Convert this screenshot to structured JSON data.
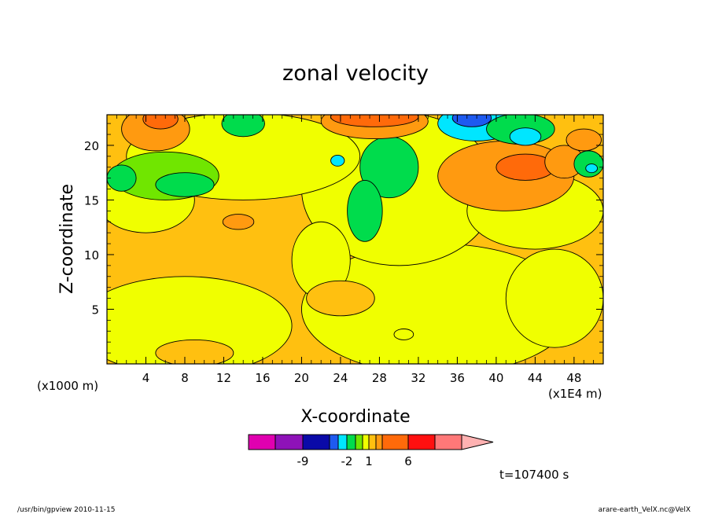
{
  "chart_data": {
    "type": "heatmap",
    "title": "zonal velocity",
    "xlabel": "X-coordinate",
    "ylabel": "Z-coordinate",
    "x_unit_left": "(x1000 m)",
    "x_unit_right": "(x1E4 m)",
    "x_ticks": [
      4,
      8,
      12,
      16,
      20,
      24,
      28,
      32,
      36,
      40,
      44,
      48
    ],
    "y_ticks": [
      5,
      10,
      15,
      20
    ],
    "xlim": [
      0,
      51
    ],
    "ylim": [
      0,
      22.8
    ],
    "time_label": "t=107400 s",
    "colorbar": {
      "levels": [
        -12,
        -9,
        -6,
        -3,
        -2,
        -1,
        0,
        1,
        2,
        3,
        6,
        9,
        12
      ],
      "colors": [
        "#e000b0",
        "#8e12b8",
        "#0a0aa8",
        "#1e5af0",
        "#00e6ff",
        "#00dc4c",
        "#70e600",
        "#f0ff00",
        "#ffc010",
        "#ff9a10",
        "#ff6a0a",
        "#ff1010",
        "#ff7878",
        "#ffb2b2"
      ],
      "tick_labels": [
        {
          "level": -9,
          "text": "-9"
        },
        {
          "level": -2,
          "text": "-2"
        },
        {
          "level": 1,
          "text": "1"
        },
        {
          "level": 6,
          "text": "6"
        }
      ]
    },
    "field": {
      "background": 1.5,
      "regions": [
        {
          "cx": 34,
          "cy": 5,
          "rx": 14,
          "ry": 6,
          "v": 0.5
        },
        {
          "cx": 8,
          "cy": 3.5,
          "rx": 11,
          "ry": 4.5,
          "v": 0.5
        },
        {
          "cx": 46,
          "cy": 6,
          "rx": 5,
          "ry": 4.5,
          "v": 0.5
        },
        {
          "cx": 30,
          "cy": 16,
          "rx": 10,
          "ry": 7,
          "v": 0.5
        },
        {
          "cx": 22,
          "cy": 9.5,
          "rx": 3,
          "ry": 3.5,
          "v": 0.5
        },
        {
          "cx": 44,
          "cy": 14,
          "rx": 7,
          "ry": 3.5,
          "v": 0.5
        },
        {
          "cx": 14,
          "cy": 19,
          "rx": 12,
          "ry": 4,
          "v": 0.5
        },
        {
          "cx": 4,
          "cy": 15,
          "rx": 5,
          "ry": 3,
          "v": 0.5
        },
        {
          "cx": 9,
          "cy": 1,
          "rx": 4,
          "ry": 1.2,
          "v": 1.5
        },
        {
          "cx": 24,
          "cy": 6,
          "rx": 3.5,
          "ry": 1.6,
          "v": 1.5
        },
        {
          "cx": 29,
          "cy": 18,
          "rx": 3,
          "ry": 2.8,
          "v": -1.5
        },
        {
          "cx": 26.5,
          "cy": 14,
          "rx": 1.8,
          "ry": 2.8,
          "v": -1.5
        },
        {
          "cx": 23.7,
          "cy": 18.6,
          "rx": 0.7,
          "ry": 0.5,
          "v": -2.5
        },
        {
          "cx": 6,
          "cy": 17.2,
          "rx": 5.5,
          "ry": 2.2,
          "v": -0.5
        },
        {
          "cx": 8,
          "cy": 16.4,
          "rx": 3,
          "ry": 1.1,
          "v": -1.5
        },
        {
          "cx": 1.5,
          "cy": 17,
          "rx": 1.5,
          "ry": 1.2,
          "v": -1.5
        },
        {
          "cx": 41,
          "cy": 17.2,
          "rx": 7,
          "ry": 3.2,
          "v": 2.5
        },
        {
          "cx": 43,
          "cy": 18,
          "rx": 3,
          "ry": 1.2,
          "v": 4.5
        },
        {
          "cx": 47,
          "cy": 18.5,
          "rx": 2,
          "ry": 1.5,
          "v": 2.5
        },
        {
          "cx": 27.5,
          "cy": 22.2,
          "rx": 5.5,
          "ry": 1.6,
          "v": 2.5
        },
        {
          "cx": 27.5,
          "cy": 22.6,
          "rx": 4.5,
          "ry": 0.9,
          "v": 4.5
        },
        {
          "cx": 5,
          "cy": 21.5,
          "rx": 3.5,
          "ry": 2,
          "v": 2.5
        },
        {
          "cx": 5.5,
          "cy": 22.4,
          "rx": 1.8,
          "ry": 0.9,
          "v": 4.5
        },
        {
          "cx": 14,
          "cy": 22,
          "rx": 2.2,
          "ry": 1.2,
          "v": -1.5
        },
        {
          "cx": 38,
          "cy": 22,
          "rx": 4,
          "ry": 1.6,
          "v": -2.5
        },
        {
          "cx": 37.5,
          "cy": 22.5,
          "rx": 2,
          "ry": 0.8,
          "v": -4.5
        },
        {
          "cx": 42.5,
          "cy": 21.5,
          "rx": 3.5,
          "ry": 1.4,
          "v": -1.5
        },
        {
          "cx": 43,
          "cy": 20.8,
          "rx": 1.6,
          "ry": 0.8,
          "v": -2.5
        },
        {
          "cx": 49,
          "cy": 20.5,
          "rx": 1.8,
          "ry": 1,
          "v": 2.5
        },
        {
          "cx": 49.5,
          "cy": 18.3,
          "rx": 1.5,
          "ry": 1.2,
          "v": -1.5
        },
        {
          "cx": 49.8,
          "cy": 17.9,
          "rx": 0.6,
          "ry": 0.4,
          "v": -2.5
        },
        {
          "cx": 13.5,
          "cy": 13,
          "rx": 1.6,
          "ry": 0.7,
          "v": 2.5
        },
        {
          "cx": 30.5,
          "cy": 2.7,
          "rx": 1,
          "ry": 0.5,
          "v": 0.5
        }
      ]
    }
  },
  "footer": {
    "left": "/usr/bin/gpview   2010-11-15",
    "right": "arare-earth_VelX.nc@VelX"
  }
}
